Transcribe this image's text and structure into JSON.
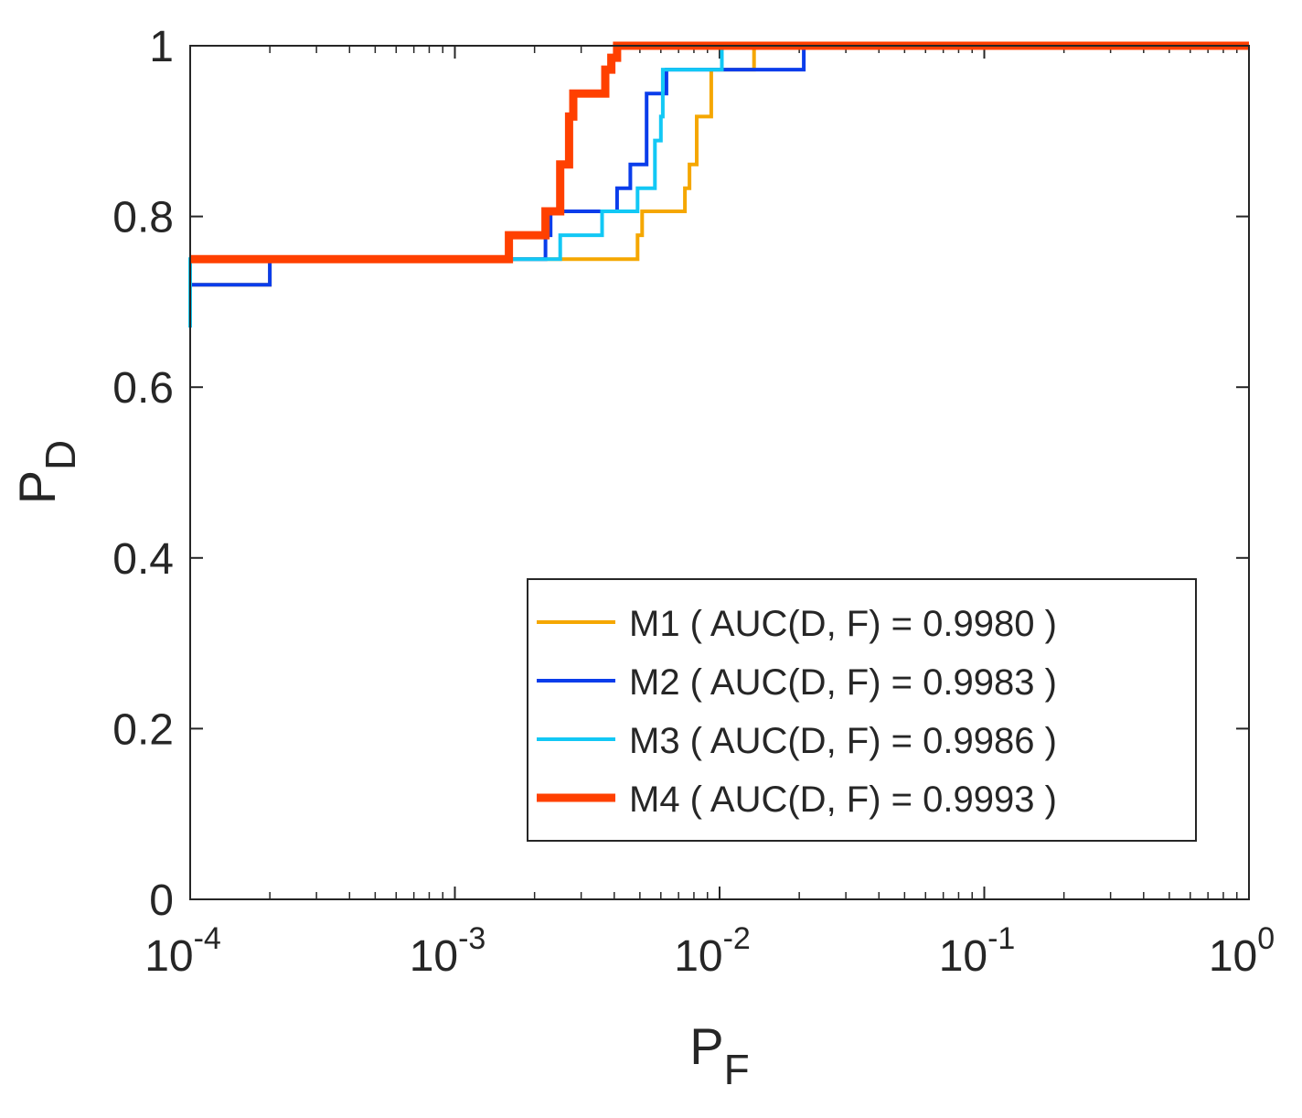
{
  "chart_data": {
    "type": "line",
    "title": "",
    "xlabel": "P",
    "xlabel_subscript": "F",
    "ylabel": "P",
    "ylabel_subscript": "D",
    "xscale": "log",
    "xlim": [
      0.0001,
      1
    ],
    "ylim": [
      0,
      1
    ],
    "xticks": [
      {
        "value": 0.0001,
        "base": "10",
        "exp": "-4"
      },
      {
        "value": 0.001,
        "base": "10",
        "exp": "-3"
      },
      {
        "value": 0.01,
        "base": "10",
        "exp": "-2"
      },
      {
        "value": 0.1,
        "base": "10",
        "exp": "-1"
      },
      {
        "value": 1,
        "base": "10",
        "exp": "0"
      }
    ],
    "yticks": [
      {
        "value": 0,
        "label": "0"
      },
      {
        "value": 0.2,
        "label": "0.2"
      },
      {
        "value": 0.4,
        "label": "0.4"
      },
      {
        "value": 0.6,
        "label": "0.6"
      },
      {
        "value": 0.8,
        "label": "0.8"
      },
      {
        "value": 1,
        "label": "1"
      }
    ],
    "legend": {
      "position": "bottom-right"
    },
    "series": [
      {
        "name": "M1",
        "label": "M1  ( AUC(D, F) = 0.9980 )",
        "color": "#F5A700",
        "line_width": 4,
        "x": [
          0.0001,
          0.0001,
          0.0002,
          0.0002,
          0.0049,
          0.0049,
          0.0051,
          0.0051,
          0.0074,
          0.0074,
          0.0077,
          0.0077,
          0.0082,
          0.0082,
          0.0093,
          0.0093,
          0.0135,
          0.0135,
          1
        ],
        "y": [
          0.67,
          0.72,
          0.72,
          0.75,
          0.75,
          0.778,
          0.778,
          0.806,
          0.806,
          0.833,
          0.833,
          0.861,
          0.861,
          0.917,
          0.917,
          0.972,
          0.972,
          1.0,
          1.0
        ]
      },
      {
        "name": "M2",
        "label": "M2  ( AUC(D, F) = 0.9983 )",
        "color": "#0A3DEB",
        "line_width": 4,
        "x": [
          0.0001,
          0.0001,
          0.0002,
          0.0002,
          0.0022,
          0.0022,
          0.0023,
          0.0023,
          0.0041,
          0.0041,
          0.0046,
          0.0046,
          0.0053,
          0.0053,
          0.0063,
          0.0063,
          0.0086,
          0.0086,
          0.0208,
          0.0208,
          1
        ],
        "y": [
          0.67,
          0.72,
          0.72,
          0.75,
          0.75,
          0.778,
          0.778,
          0.806,
          0.806,
          0.833,
          0.833,
          0.861,
          0.861,
          0.944,
          0.944,
          0.972,
          0.972,
          0.972,
          0.972,
          1.0,
          1.0
        ]
      },
      {
        "name": "M3",
        "label": "M3  ( AUC(D, F) = 0.9986 )",
        "color": "#12C8F5",
        "line_width": 4,
        "x": [
          0.0001,
          0.0001,
          0.0016,
          0.0016,
          0.0025,
          0.0025,
          0.0036,
          0.0036,
          0.0049,
          0.0049,
          0.0057,
          0.0057,
          0.006,
          0.006,
          0.0061,
          0.0061,
          0.0102,
          0.0102,
          1
        ],
        "y": [
          0.67,
          0.75,
          0.75,
          0.75,
          0.75,
          0.778,
          0.778,
          0.806,
          0.806,
          0.833,
          0.833,
          0.889,
          0.889,
          0.917,
          0.917,
          0.972,
          0.972,
          1.0,
          1.0
        ]
      },
      {
        "name": "M4",
        "label": "M4  ( AUC(D, F) = 0.9993 )",
        "color": "#FF4000",
        "line_width": 9,
        "x": [
          0.0001,
          0.0016,
          0.0016,
          0.0022,
          0.0022,
          0.0025,
          0.0025,
          0.0027,
          0.0027,
          0.0028,
          0.0028,
          0.0037,
          0.0037,
          0.0039,
          0.0039,
          0.0041,
          0.0041,
          1
        ],
        "y": [
          0.75,
          0.75,
          0.778,
          0.778,
          0.806,
          0.806,
          0.861,
          0.861,
          0.917,
          0.917,
          0.944,
          0.944,
          0.972,
          0.972,
          0.986,
          0.986,
          1.0,
          1.0
        ]
      }
    ]
  }
}
